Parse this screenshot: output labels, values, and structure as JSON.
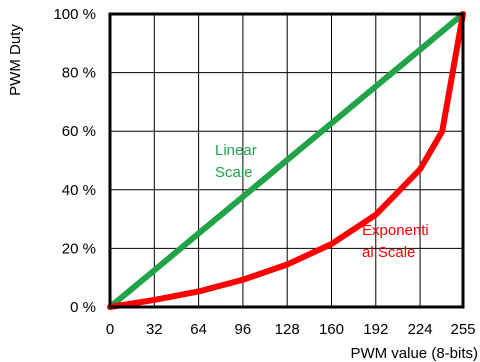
{
  "chart_data": {
    "type": "line",
    "xlabel": "PWM value (8-bits)",
    "ylabel": "PWM Duty",
    "xlim": [
      0,
      255
    ],
    "ylim": [
      0,
      100
    ],
    "x_ticks": [
      0,
      32,
      64,
      96,
      128,
      160,
      192,
      224,
      255
    ],
    "x_tick_labels": [
      "0",
      "32",
      "64",
      "96",
      "128",
      "160",
      "192",
      "224",
      "255"
    ],
    "y_ticks": [
      0,
      20,
      40,
      60,
      80,
      100
    ],
    "y_tick_labels": [
      "0 %",
      "20 %",
      "40 %",
      "60 %",
      "80 %",
      "100 %"
    ],
    "grid": true,
    "series": [
      {
        "name": "Linear Scale",
        "label_lines": [
          "Linear",
          "Scale"
        ],
        "color": "#21a34a",
        "x": [
          0,
          32,
          64,
          96,
          128,
          160,
          192,
          224,
          255
        ],
        "y": [
          0,
          12.5,
          25.1,
          37.6,
          50.2,
          62.7,
          75.3,
          87.8,
          100
        ]
      },
      {
        "name": "Exponential Scale",
        "label_lines": [
          "Exponenti",
          "al Scale"
        ],
        "color": "#ff0000",
        "x": [
          0,
          32,
          64,
          96,
          128,
          160,
          192,
          224,
          240,
          255
        ],
        "y": [
          0,
          2.4,
          5.3,
          9.3,
          14.5,
          21.5,
          31.5,
          47,
          60,
          100
        ]
      }
    ]
  }
}
